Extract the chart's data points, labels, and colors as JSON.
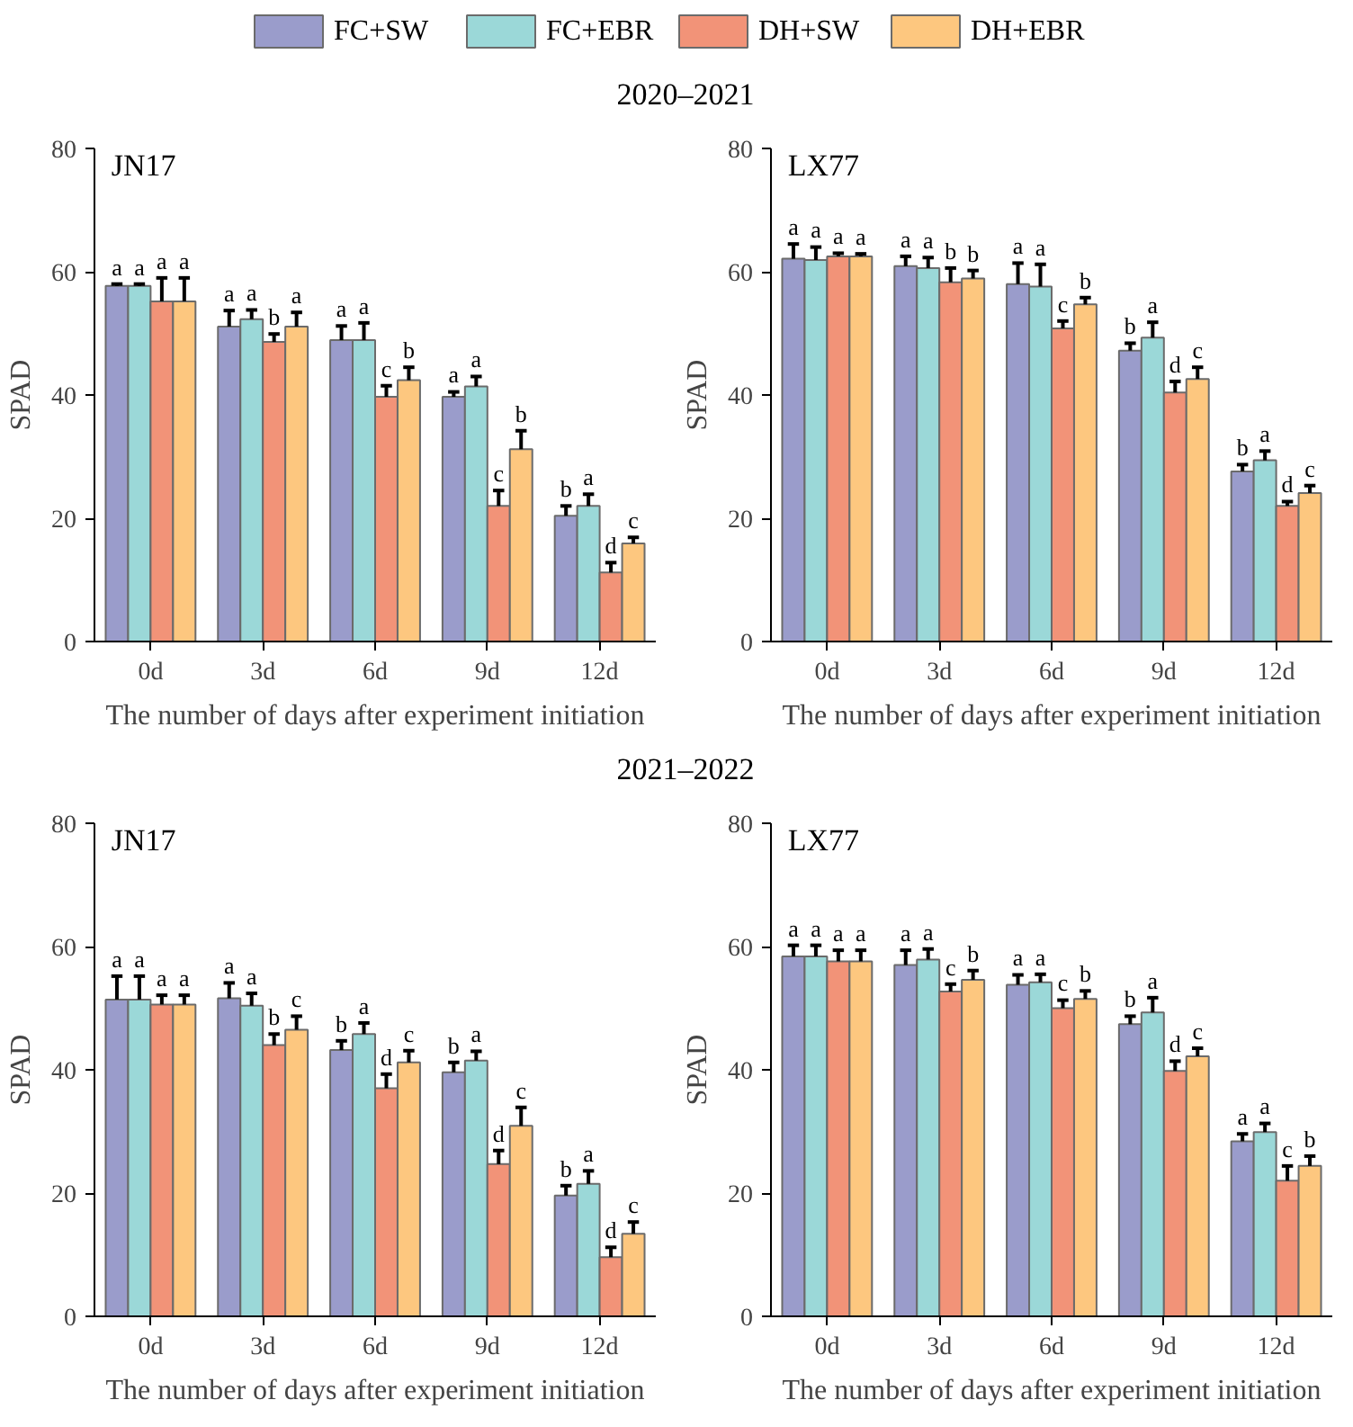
{
  "chart_data": [
    {
      "type": "bar",
      "title": "2020–2021",
      "annotations": [
        "JN17"
      ],
      "legend": "top",
      "categories": [
        "0d",
        "3d",
        "6d",
        "9d",
        "12d"
      ],
      "xlabel": "The number of days after experiment initiation",
      "ylabel": "SPAD",
      "ylim": [
        0,
        80
      ],
      "yticks": [
        0,
        20,
        40,
        60,
        80
      ],
      "grid": false,
      "series": [
        {
          "name": "FC+SW",
          "color": "#9a9ccb",
          "values": [
            57.7,
            51.1,
            48.9,
            39.7,
            20.4
          ],
          "errors": [
            0.3,
            2.6,
            2.3,
            0.8,
            1.6
          ],
          "value_labels": [
            "a",
            "a",
            "a",
            "a",
            "b"
          ]
        },
        {
          "name": "FC+EBR",
          "color": "#9bd8d8",
          "values": [
            57.7,
            52.3,
            48.9,
            41.4,
            22.0
          ],
          "errors": [
            0.3,
            1.5,
            2.8,
            1.6,
            1.9
          ],
          "value_labels": [
            "a",
            "a",
            "a",
            "a",
            "a"
          ]
        },
        {
          "name": "DH+SW",
          "color": "#f29378",
          "values": [
            55.2,
            48.6,
            39.7,
            22.0,
            11.2
          ],
          "errors": [
            3.8,
            1.3,
            1.8,
            2.5,
            1.6
          ],
          "value_labels": [
            "a",
            "b",
            "c",
            "c",
            "d"
          ]
        },
        {
          "name": "DH+EBR",
          "color": "#fdc77f",
          "values": [
            55.2,
            51.1,
            42.4,
            31.2,
            15.9
          ],
          "errors": [
            3.8,
            2.3,
            2.1,
            3.0,
            1.0
          ],
          "value_labels": [
            "a",
            "a",
            "b",
            "b",
            "c"
          ]
        }
      ]
    },
    {
      "type": "bar",
      "annotations": [
        "LX77"
      ],
      "categories": [
        "0d",
        "3d",
        "6d",
        "9d",
        "12d"
      ],
      "xlabel": "The number of days after experiment initiation",
      "ylabel": "SPAD",
      "ylim": [
        0,
        80
      ],
      "yticks": [
        0,
        20,
        40,
        60,
        80
      ],
      "grid": false,
      "series": [
        {
          "color": "#9a9ccb",
          "values": [
            62.1,
            60.9,
            58.0,
            47.2,
            27.6
          ],
          "errors": [
            2.4,
            1.6,
            3.4,
            1.2,
            1.1
          ],
          "value_labels": [
            "a",
            "a",
            "a",
            "b",
            "b"
          ]
        },
        {
          "color": "#9bd8d8",
          "values": [
            61.9,
            60.6,
            57.6,
            49.3,
            29.4
          ],
          "errors": [
            2.1,
            1.7,
            3.6,
            2.5,
            1.5
          ],
          "value_labels": [
            "a",
            "a",
            "a",
            "a",
            "a"
          ]
        },
        {
          "color": "#f29378",
          "values": [
            62.5,
            58.3,
            50.8,
            40.4,
            22.0
          ],
          "errors": [
            0.5,
            2.3,
            1.2,
            1.8,
            0.7
          ],
          "value_labels": [
            "a",
            "b",
            "c",
            "d",
            "d"
          ]
        },
        {
          "color": "#fdc77f",
          "values": [
            62.5,
            58.9,
            54.7,
            42.6,
            24.1
          ],
          "errors": [
            0.4,
            1.3,
            1.1,
            1.9,
            1.2
          ],
          "value_labels": [
            "a",
            "b",
            "b",
            "c",
            "c"
          ]
        }
      ]
    },
    {
      "type": "bar",
      "title": "2021–2022",
      "annotations": [
        "JN17"
      ],
      "categories": [
        "0d",
        "3d",
        "6d",
        "9d",
        "12d"
      ],
      "xlabel": "The number of days after experiment initiation",
      "ylabel": "SPAD",
      "ylim": [
        0,
        80
      ],
      "yticks": [
        0,
        20,
        40,
        60,
        80
      ],
      "grid": false,
      "series": [
        {
          "color": "#9a9ccb",
          "values": [
            51.4,
            51.6,
            43.2,
            39.6,
            19.6
          ],
          "errors": [
            3.8,
            2.5,
            1.5,
            1.6,
            1.6
          ],
          "value_labels": [
            "a",
            "a",
            "b",
            "b",
            "b"
          ]
        },
        {
          "color": "#9bd8d8",
          "values": [
            51.4,
            50.4,
            45.8,
            41.5,
            21.5
          ],
          "errors": [
            3.8,
            2.0,
            1.8,
            1.5,
            2.1
          ],
          "value_labels": [
            "a",
            "a",
            "a",
            "a",
            "a"
          ]
        },
        {
          "color": "#f29378",
          "values": [
            50.6,
            44.0,
            37.0,
            24.7,
            9.6
          ],
          "errors": [
            1.5,
            1.8,
            2.3,
            2.2,
            1.6
          ],
          "value_labels": [
            "a",
            "b",
            "d",
            "d",
            "d"
          ]
        },
        {
          "color": "#fdc77f",
          "values": [
            50.6,
            46.5,
            41.2,
            30.9,
            13.4
          ],
          "errors": [
            1.5,
            2.2,
            1.9,
            3.0,
            1.9
          ],
          "value_labels": [
            "a",
            "c",
            "c",
            "c",
            "c"
          ]
        }
      ]
    },
    {
      "type": "bar",
      "annotations": [
        "LX77"
      ],
      "categories": [
        "0d",
        "3d",
        "6d",
        "9d",
        "12d"
      ],
      "xlabel": "The number of days after experiment initiation",
      "ylabel": "SPAD",
      "ylim": [
        0,
        80
      ],
      "yticks": [
        0,
        20,
        40,
        60,
        80
      ],
      "grid": false,
      "series": [
        {
          "color": "#9a9ccb",
          "values": [
            58.4,
            57.0,
            53.8,
            47.4,
            28.4
          ],
          "errors": [
            1.8,
            2.4,
            1.6,
            1.3,
            1.2
          ],
          "value_labels": [
            "a",
            "a",
            "a",
            "b",
            "a"
          ]
        },
        {
          "color": "#9bd8d8",
          "values": [
            58.4,
            57.9,
            54.2,
            49.3,
            29.9
          ],
          "errors": [
            1.8,
            1.7,
            1.3,
            2.4,
            1.4
          ],
          "value_labels": [
            "a",
            "a",
            "a",
            "a",
            "a"
          ]
        },
        {
          "color": "#f29378",
          "values": [
            57.6,
            52.7,
            50.0,
            39.8,
            22.0
          ],
          "errors": [
            1.8,
            1.2,
            1.3,
            1.6,
            2.4
          ],
          "value_labels": [
            "a",
            "c",
            "c",
            "d",
            "c"
          ]
        },
        {
          "color": "#fdc77f",
          "values": [
            57.6,
            54.6,
            51.5,
            42.2,
            24.4
          ],
          "errors": [
            1.8,
            1.5,
            1.3,
            1.3,
            1.6
          ],
          "value_labels": [
            "a",
            "b",
            "b",
            "c",
            "b"
          ]
        }
      ]
    }
  ]
}
